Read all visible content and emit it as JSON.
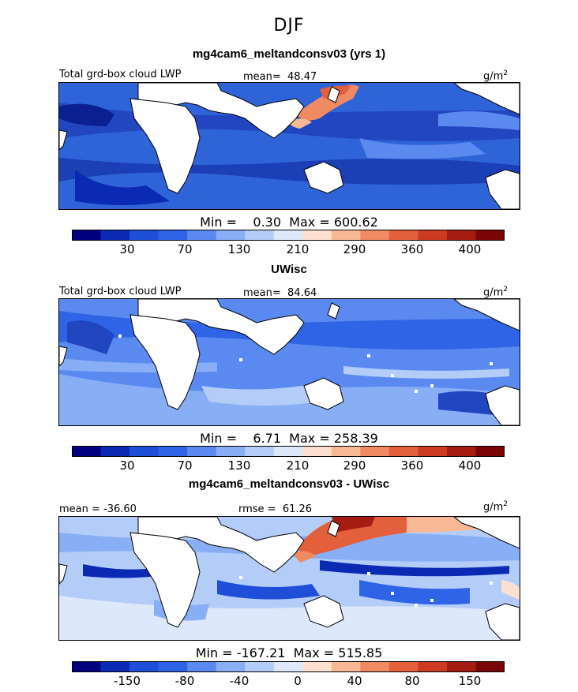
{
  "figure": {
    "suptitle": "DJF",
    "units": "g/m",
    "units_exp": "2"
  },
  "chart_data": [
    {
      "type": "heatmap",
      "title": "mg4cam6_meltandconsv03 (yrs 1)",
      "left_label": "Total grd-box cloud LWP",
      "center_label": "mean=  48.47",
      "min_max_label": "Min =    0.30  Max = 600.62",
      "stats": {
        "mean": 48.47,
        "min": 0.3,
        "max": 600.62
      },
      "colorbar": {
        "colors": [
          "#000080",
          "#0a2ab3",
          "#1f4fd8",
          "#2f64e6",
          "#5a8af0",
          "#88aef5",
          "#b4ccf8",
          "#dde8fb",
          "#fde0cf",
          "#f8b896",
          "#f08a62",
          "#e4603c",
          "#cc3b22",
          "#a51c12",
          "#7a0707"
        ],
        "ticks": [
          "30",
          "70",
          "130",
          "210",
          "290",
          "360",
          "400"
        ]
      }
    },
    {
      "type": "heatmap",
      "title": "UWisc",
      "left_label": "Total grd-box cloud LWP",
      "center_label": "mean=  84.64",
      "min_max_label": "Min =    6.71  Max = 258.39",
      "stats": {
        "mean": 84.64,
        "min": 6.71,
        "max": 258.39
      },
      "colorbar": {
        "colors": [
          "#000080",
          "#0a2ab3",
          "#1f4fd8",
          "#2f64e6",
          "#5a8af0",
          "#88aef5",
          "#b4ccf8",
          "#dde8fb",
          "#fde0cf",
          "#f8b896",
          "#f08a62",
          "#e4603c",
          "#cc3b22",
          "#a51c12",
          "#7a0707"
        ],
        "ticks": [
          "30",
          "70",
          "130",
          "210",
          "290",
          "360",
          "400"
        ]
      }
    },
    {
      "type": "heatmap",
      "title": "mg4cam6_meltandconsv03 - UWisc",
      "left_label": "mean = -36.60",
      "center_label": "rmse =  61.26",
      "min_max_label": "Min = -167.21  Max = 515.85",
      "stats": {
        "mean": -36.6,
        "rmse": 61.26,
        "min": -167.21,
        "max": 515.85
      },
      "colorbar": {
        "colors": [
          "#000080",
          "#0a2ab3",
          "#1f4fd8",
          "#2f64e6",
          "#5a8af0",
          "#88aef5",
          "#b4ccf8",
          "#dde8fb",
          "#fde0cf",
          "#f8b896",
          "#f08a62",
          "#e4603c",
          "#cc3b22",
          "#a51c12",
          "#7a0707"
        ],
        "ticks": [
          "-150",
          "-80",
          "-40",
          "0",
          "40",
          "80",
          "150"
        ]
      }
    }
  ]
}
